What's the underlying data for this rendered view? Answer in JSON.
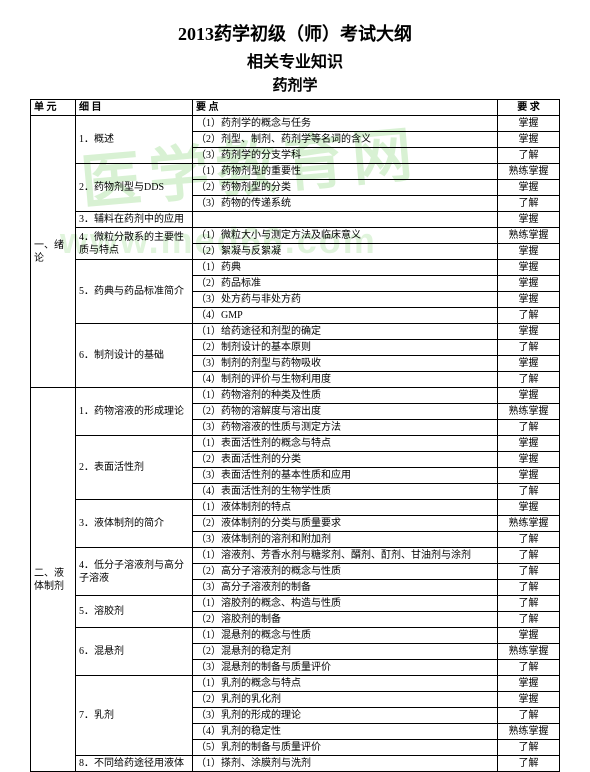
{
  "watermark": {
    "text1": "医学教育网",
    "text2": "www.med66.com"
  },
  "title": {
    "line1": "2013药学初级（师）考试大纲",
    "line2": "相关专业知识",
    "line3": "药剂学"
  },
  "headers": {
    "c1": "单 元",
    "c2": "细 目",
    "c3": "要 点",
    "c4": "要 求"
  },
  "rows": [
    {
      "u": "一、绪论",
      "us": 6,
      "s": "1．概述",
      "ss": 3,
      "p": "（1）药剂学的概念与任务",
      "r": "掌握"
    },
    {
      "p": "（2）剂型、制剂、药剂学等名词的含义",
      "r": "掌握"
    },
    {
      "p": "（3）药剂学的分支学科",
      "r": "了解"
    },
    {
      "s": "2．药物剂型与DDS",
      "ss": 3,
      "p": "（1）药物剂型的重要性",
      "r": "熟练掌握"
    },
    {
      "p": "（2）药物剂型的分类",
      "r": "掌握"
    },
    {
      "p": "（3）药物的传递系统",
      "r": "了解"
    },
    {
      "s": "3．辅料在药剂中的应用",
      "ss": 1,
      "p": "",
      "r": "掌握"
    },
    {
      "s": "4．微粒分散系的主要性质与特点",
      "ss": 2,
      "p": "（1）微粒大小与测定方法及临床意义",
      "r": "熟练掌握"
    },
    {
      "p": "（2）絮凝与反絮凝",
      "r": "掌握"
    },
    {
      "s": "5．药典与药品标准简介",
      "ss": 4,
      "p": "（1）药典",
      "r": "掌握"
    },
    {
      "p": "（2）药品标准",
      "r": "掌握"
    },
    {
      "p": "（3）处方药与非处方药",
      "r": "掌握"
    },
    {
      "p": "（4）GMP",
      "r": "了解"
    },
    {
      "s": "6．制剂设计的基础",
      "ss": 4,
      "p": "（1）给药途径和剂型的确定",
      "r": "掌握"
    },
    {
      "p": "（2）制剂设计的基本原则",
      "r": "了解"
    },
    {
      "p": "（3）制剂的剂型与药物吸收",
      "r": "掌握"
    },
    {
      "p": "（4）制剂的评价与生物利用度",
      "r": "了解"
    },
    {
      "u": "二、液体制剂",
      "us": 8,
      "s": "1．药物溶液的形成理论",
      "ss": 3,
      "p": "（1）药物溶剂的种类及性质",
      "r": "掌握"
    },
    {
      "p": "（2）药物的溶解度与溶出度",
      "r": "熟练掌握"
    },
    {
      "p": "（3）药物溶液的性质与测定方法",
      "r": "了解"
    },
    {
      "s": "2．表面活性剂",
      "ss": 4,
      "p": "（1）表面活性剂的概念与特点",
      "r": "掌握"
    },
    {
      "p": "（2）表面活性剂的分类",
      "r": "掌握"
    },
    {
      "p": "（3）表面活性剂的基本性质和应用",
      "r": "掌握"
    },
    {
      "p": "（4）表面活性剂的生物学性质",
      "r": "了解"
    },
    {
      "s": "3．液体制剂的简介",
      "ss": 3,
      "p": "（1）液体制剂的特点",
      "r": "掌握"
    },
    {
      "p": "（2）液体制剂的分类与质量要求",
      "r": "熟练掌握"
    },
    {
      "p": "（3）液体制剂的溶剂和附加剂",
      "r": "了解"
    },
    {
      "s": "4．低分子溶液剂与高分子溶液",
      "ss": 3,
      "p": "（1）溶液剂、芳香水剂与糖浆剂、醑剂、酊剂、甘油剂与涂剂",
      "r": "了解"
    },
    {
      "p": "（2）高分子溶液剂的概念与性质",
      "r": "了解"
    },
    {
      "p": "（3）高分子溶液剂的制备",
      "r": "了解"
    },
    {
      "s": "5．溶胶剂",
      "ss": 2,
      "p": "（1）溶胶剂的概念、构造与性质",
      "r": "了解"
    },
    {
      "p": "（2）溶胶剂的制备",
      "r": "了解"
    },
    {
      "s": "6．混悬剂",
      "ss": 3,
      "p": "（1）混悬剂的概念与性质",
      "r": "掌握"
    },
    {
      "p": "（2）混悬剂的稳定剂",
      "r": "熟练掌握"
    },
    {
      "p": "（3）混悬剂的制备与质量评价",
      "r": "了解"
    },
    {
      "s": "7．乳剂",
      "ss": 5,
      "p": "（1）乳剂的概念与特点",
      "r": "掌握"
    },
    {
      "p": "（2）乳剂的乳化剂",
      "r": "掌握"
    },
    {
      "p": "（3）乳剂的形成的理论",
      "r": "了解"
    },
    {
      "p": "（4）乳剂的稳定性",
      "r": "熟练掌握"
    },
    {
      "p": "（5）乳剂的制备与质量评价",
      "r": "了解"
    },
    {
      "s": "8．不同给药途径用液体",
      "ss": 1,
      "p": "（1）搽剂、涂膜剂与洗剂",
      "r": "了解"
    }
  ]
}
